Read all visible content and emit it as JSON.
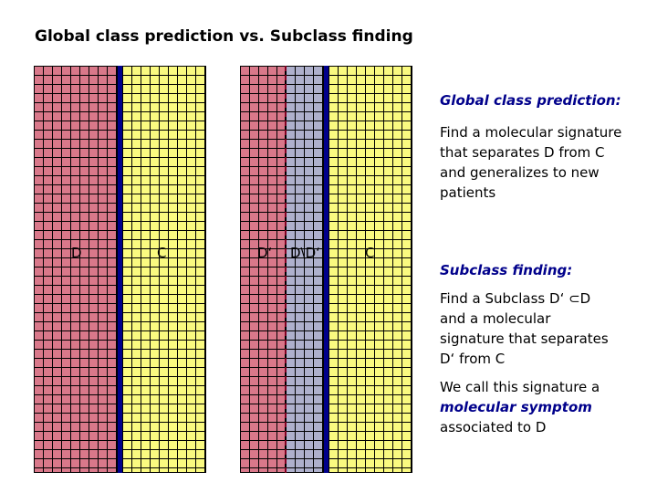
{
  "title": "Global class prediction vs. Subclass finding",
  "groups": {
    "left": {
      "d_label": "D",
      "c_label": "C"
    },
    "right": {
      "dprime_label": "D‘",
      "rest_label": "D\\D‘",
      "c_label": "C"
    }
  },
  "text": {
    "global_heading": "Global class prediction:",
    "global_body": "Find a molecular signature that separates D from C and generalizes to new patients",
    "subclass_heading": "Subclass finding:",
    "subclass_body": "Find a Subclass D‘ ⊂D and a molecular signature that separates D‘ from C",
    "call_prefix": "We call this signature a",
    "call_emph": "molecular symptom",
    "call_suffix": "associated to D"
  },
  "colors": {
    "d_samples": "#d9788a",
    "c_samples": "#fafa80",
    "rest_samples": "#aeb0cc",
    "separator": "#00008b"
  }
}
